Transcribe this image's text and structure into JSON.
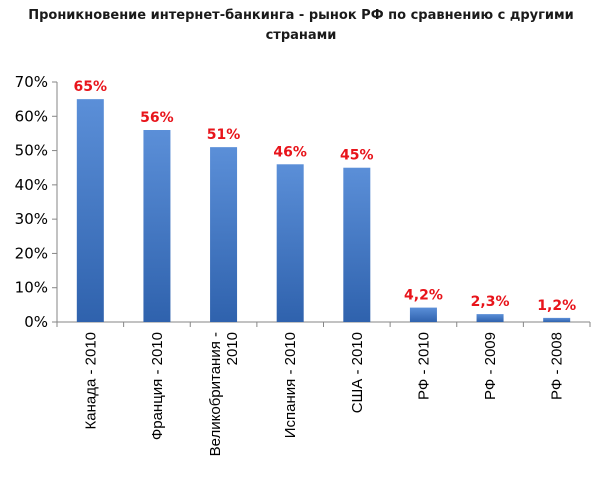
{
  "chart_data": {
    "type": "bar",
    "title": "Проникновение интернет-банкинга - рынок РФ по сравнению с другими странами",
    "categories": [
      [
        "Канада - 2010"
      ],
      [
        "Франция - 2010"
      ],
      [
        "Великобритания -",
        "2010"
      ],
      [
        "Испания - 2010"
      ],
      [
        "США - 2010"
      ],
      [
        "РФ - 2010"
      ],
      [
        "РФ - 2009"
      ],
      [
        "РФ - 2008"
      ]
    ],
    "values": [
      65,
      56,
      51,
      46,
      45,
      4.2,
      2.3,
      1.2
    ],
    "data_labels": [
      "65%",
      "56%",
      "51%",
      "46%",
      "45%",
      "4,2%",
      "2,3%",
      "1,2%"
    ],
    "yticks": [
      "0%",
      "10%",
      "20%",
      "30%",
      "40%",
      "50%",
      "60%",
      "70%"
    ],
    "ylim": [
      0,
      70
    ],
    "xlabel": "",
    "ylabel": "",
    "grid": false,
    "legend": "none",
    "colors": {
      "bar_top": "#5b8fd8",
      "bar_bottom": "#2f62ad",
      "data_label": "#e8141b",
      "axis": "#868686"
    }
  }
}
